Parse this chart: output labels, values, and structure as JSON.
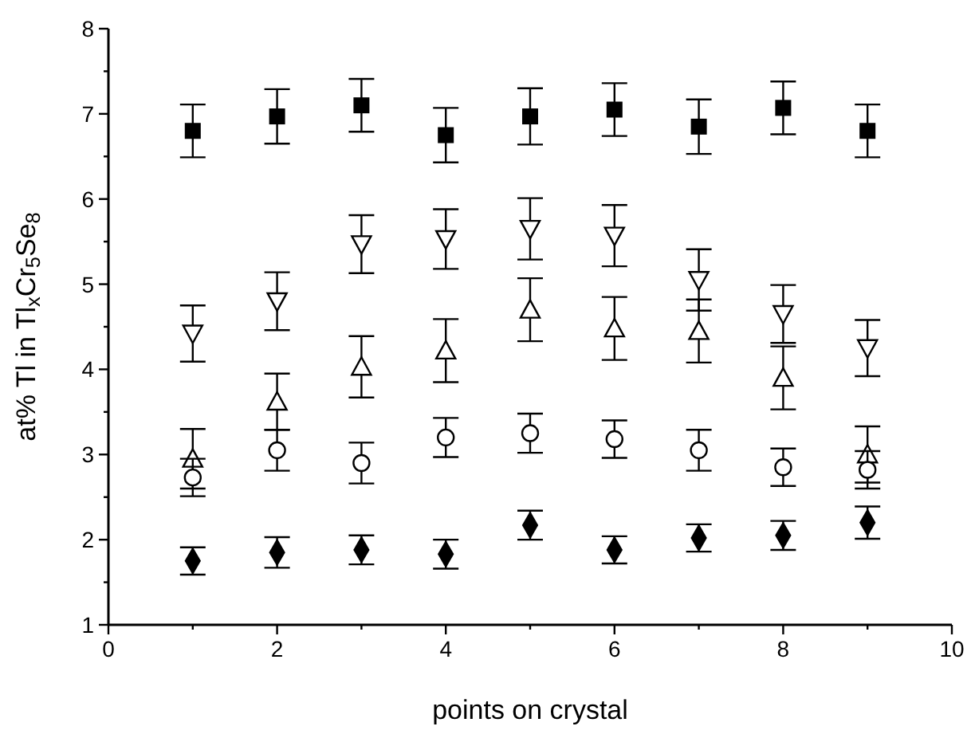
{
  "chart_data": {
    "type": "scatter",
    "xlabel": "points on crystal",
    "ylabel": "at% Tl in Tl$_{x}$Cr$_{5}$Se$_{8}$",
    "x": [
      1,
      2,
      3,
      4,
      5,
      6,
      7,
      8,
      9
    ],
    "xlim": [
      0,
      10
    ],
    "xticks": [
      0,
      {
        "value": 1,
        "label": null
      },
      2,
      {
        "value": 3,
        "label": null
      },
      4,
      {
        "value": 5,
        "label": null
      },
      6,
      {
        "value": 7,
        "label": null
      },
      8,
      {
        "value": 9,
        "label": null
      },
      10
    ],
    "ylim": [
      1,
      8
    ],
    "yticks": [
      1,
      {
        "value": 1.5,
        "label": null
      },
      2,
      {
        "value": 2.5,
        "label": null
      },
      3,
      {
        "value": 3.5,
        "label": null
      },
      4,
      {
        "value": 4.5,
        "label": null
      },
      5,
      {
        "value": 5.5,
        "label": null
      },
      6,
      {
        "value": 6.5,
        "label": null
      },
      7,
      {
        "value": 7.5,
        "label": null
      },
      8
    ],
    "grid": false,
    "series": [
      {
        "color": "#000000",
        "marker": "square",
        "values": [
          6.8,
          6.97,
          7.1,
          6.75,
          6.97,
          7.05,
          6.85,
          7.07,
          6.8
        ],
        "errors": [
          0.31,
          0.32,
          0.31,
          0.32,
          0.33,
          0.31,
          0.32,
          0.31,
          0.31
        ]
      },
      {
        "color": "#000000",
        "marker": "triangle-down",
        "values": [
          4.42,
          4.8,
          5.47,
          5.53,
          5.65,
          5.57,
          5.05,
          4.65,
          4.25
        ],
        "errors": [
          0.33,
          0.34,
          0.34,
          0.35,
          0.36,
          0.36,
          0.36,
          0.34,
          0.33
        ]
      },
      {
        "color": "#000000",
        "marker": "triangle",
        "values": [
          2.95,
          3.62,
          4.03,
          4.22,
          4.7,
          4.48,
          4.45,
          3.9,
          3.0
        ],
        "errors": [
          0.35,
          0.33,
          0.36,
          0.37,
          0.37,
          0.37,
          0.37,
          0.37,
          0.33
        ]
      },
      {
        "color": "#000000",
        "marker": "circle",
        "values": [
          2.73,
          3.05,
          2.9,
          3.2,
          3.25,
          3.18,
          3.05,
          2.85,
          2.82
        ],
        "errors": [
          0.22,
          0.24,
          0.24,
          0.23,
          0.23,
          0.22,
          0.24,
          0.22,
          0.22
        ]
      },
      {
        "color": "#000000",
        "marker": "diamond",
        "values": [
          1.75,
          1.85,
          1.88,
          1.83,
          2.17,
          1.88,
          2.02,
          2.05,
          2.2
        ],
        "errors": [
          0.16,
          0.18,
          0.17,
          0.17,
          0.17,
          0.16,
          0.16,
          0.17,
          0.19
        ]
      }
    ]
  }
}
